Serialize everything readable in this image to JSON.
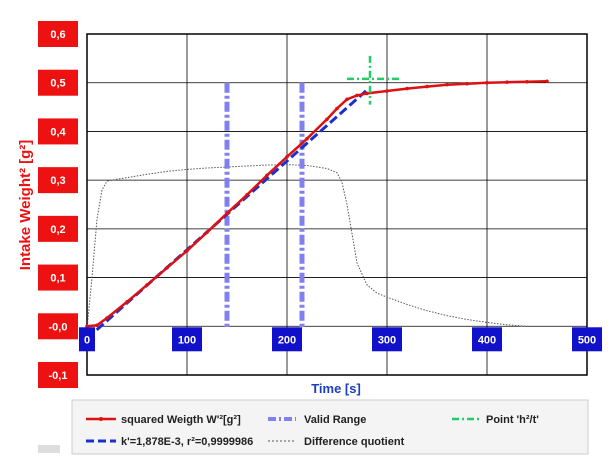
{
  "chart_data": {
    "type": "line",
    "title": "",
    "xlabel": "Time [s]",
    "ylabel": "Intake Weight² [g²]",
    "xlim": [
      0,
      500
    ],
    "ylim": [
      -0.1,
      0.6
    ],
    "x_ticks": [
      {
        "value": 0,
        "label": "0"
      },
      {
        "value": 100,
        "label": "100"
      },
      {
        "value": 200,
        "label": "200"
      },
      {
        "value": 300,
        "label": "300"
      },
      {
        "value": 400,
        "label": "400"
      },
      {
        "value": 500,
        "label": "500"
      }
    ],
    "y_ticks": [
      {
        "value": 0.6,
        "label": "0,6"
      },
      {
        "value": 0.5,
        "label": "0,5"
      },
      {
        "value": 0.4,
        "label": "0,4"
      },
      {
        "value": 0.3,
        "label": "0,3"
      },
      {
        "value": 0.2,
        "label": "0,2"
      },
      {
        "value": 0.1,
        "label": "0,1"
      },
      {
        "value": 0.0,
        "label": "-0,0"
      },
      {
        "value": -0.1,
        "label": "-0,1"
      }
    ],
    "grid": true,
    "legend_position": "bottom",
    "colors": {
      "squared": "#dd1111",
      "fit": "#1a2fd0",
      "valid": "#8080ee",
      "point": "#22cc66",
      "diff": "#555555",
      "tick_box_y": "#ee1111",
      "tick_box_x": "#1111cc",
      "ylabel": "#ee1111",
      "xlabel": "#1a3fbf"
    },
    "series": [
      {
        "name": "squared Weigth W'²[g²]",
        "style": "solid-marker",
        "x": [
          0,
          10,
          20,
          40,
          60,
          80,
          100,
          120,
          140,
          160,
          180,
          200,
          220,
          240,
          250,
          260,
          270,
          280,
          300,
          320,
          340,
          360,
          380,
          400,
          420,
          440,
          460
        ],
        "y": [
          0.0,
          0.002,
          0.017,
          0.05,
          0.085,
          0.12,
          0.155,
          0.193,
          0.232,
          0.27,
          0.31,
          0.348,
          0.385,
          0.425,
          0.447,
          0.466,
          0.474,
          0.478,
          0.483,
          0.488,
          0.492,
          0.496,
          0.498,
          0.5,
          0.501,
          0.502,
          0.503
        ]
      },
      {
        "name": "k'=1,878E-3, r²=0,9999986",
        "style": "dashed",
        "x": [
          0,
          280
        ],
        "y": [
          -0.025,
          0.485
        ]
      },
      {
        "name": "Valid Range",
        "style": "dashdot-vertical",
        "x": [
          140,
          215
        ],
        "y": [
          -0.005,
          0.5
        ]
      },
      {
        "name": "Point 'h²/t'",
        "style": "dashdot-cross",
        "x": [
          283
        ],
        "y": [
          0.508
        ],
        "h_range": [
          260,
          315
        ],
        "v_range": [
          0.455,
          0.555
        ]
      },
      {
        "name": "Difference quotient",
        "style": "dotted",
        "x": [
          0,
          5,
          10,
          15,
          20,
          30,
          40,
          60,
          80,
          100,
          120,
          140,
          160,
          180,
          200,
          220,
          240,
          250,
          255,
          260,
          265,
          270,
          280,
          290,
          300,
          320,
          340,
          360,
          380,
          400,
          420,
          440
        ],
        "y": [
          -0.005,
          0.1,
          0.22,
          0.28,
          0.298,
          0.302,
          0.305,
          0.312,
          0.318,
          0.322,
          0.325,
          0.327,
          0.329,
          0.331,
          0.332,
          0.33,
          0.324,
          0.315,
          0.295,
          0.25,
          0.19,
          0.13,
          0.085,
          0.068,
          0.06,
          0.045,
          0.032,
          0.022,
          0.014,
          0.008,
          0.003,
          0.0
        ]
      }
    ]
  },
  "legend": [
    {
      "label": "squared Weigth W'²[g²]"
    },
    {
      "label": "Valid Range"
    },
    {
      "label": "Point 'h²/t'"
    },
    {
      "label": "k'=1,878E-3, r²=0,9999986"
    },
    {
      "label": "Difference quotient"
    }
  ]
}
